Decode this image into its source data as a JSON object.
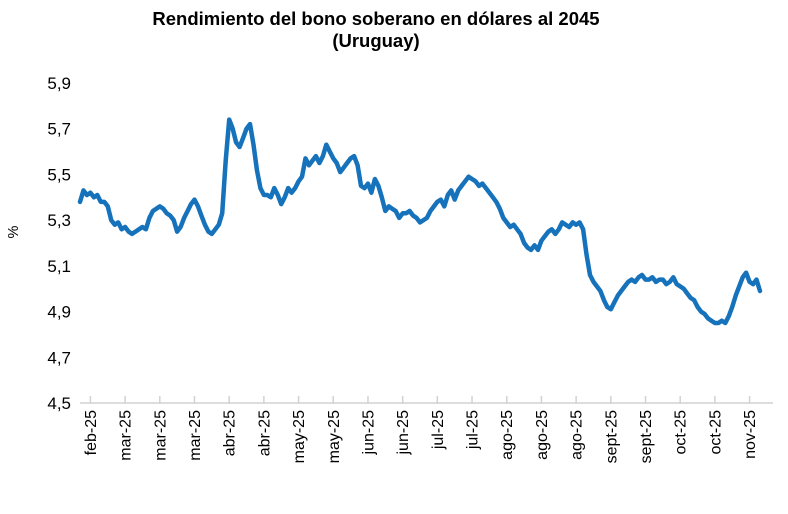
{
  "title": {
    "line1": "Rendimiento del bono soberano en dólares al 2045",
    "line2": "(Uruguay)"
  },
  "colors": {
    "line": "#1572BB",
    "axis": "#D2D2D2",
    "text": "#000000",
    "background": "#FFFFFF"
  },
  "chart_data": {
    "type": "line",
    "title": "Rendimiento del bono soberano en dólares al 2045 (Uruguay)",
    "xlabel": "",
    "ylabel": "%",
    "ylim": [
      4.5,
      5.9
    ],
    "grid": false,
    "legend": "none",
    "y_tick_values": [
      5.9,
      5.7,
      5.5,
      5.3,
      5.1,
      4.9,
      4.7,
      4.5
    ],
    "y_tick_labels": [
      "5,9",
      "5,7",
      "5,5",
      "5,3",
      "5,1",
      "4,9",
      "4,7",
      "4,5"
    ],
    "x_tick_labels": [
      "feb-25",
      "mar-25",
      "mar-25",
      "mar-25",
      "abr-25",
      "abr-25",
      "may-25",
      "may-25",
      "jun-25",
      "jun-25",
      "jul-25",
      "jul-25",
      "ago-25",
      "ago-25",
      "ago-25",
      "sept-25",
      "sept-25",
      "oct-25",
      "oct-25",
      "nov-25"
    ],
    "x_tick_indices": [
      3,
      13,
      23,
      33,
      43,
      53,
      63,
      73,
      83,
      93,
      103,
      113,
      123,
      133,
      143,
      153,
      163,
      173,
      183,
      193
    ],
    "series": [
      {
        "name": "Rendimiento del bono soberano en dólares al 2045 (Uruguay)",
        "unit": "%",
        "color": "#1572BB",
        "values": [
          5.38,
          5.43,
          5.41,
          5.42,
          5.4,
          5.41,
          5.38,
          5.38,
          5.36,
          5.3,
          5.28,
          5.29,
          5.26,
          5.27,
          5.25,
          5.24,
          5.25,
          5.26,
          5.27,
          5.26,
          5.31,
          5.34,
          5.35,
          5.36,
          5.35,
          5.33,
          5.32,
          5.3,
          5.25,
          5.27,
          5.31,
          5.34,
          5.37,
          5.39,
          5.36,
          5.32,
          5.28,
          5.25,
          5.24,
          5.26,
          5.28,
          5.33,
          5.56,
          5.74,
          5.7,
          5.64,
          5.62,
          5.66,
          5.7,
          5.72,
          5.63,
          5.52,
          5.44,
          5.41,
          5.41,
          5.4,
          5.44,
          5.41,
          5.37,
          5.4,
          5.44,
          5.42,
          5.44,
          5.47,
          5.49,
          5.57,
          5.54,
          5.56,
          5.58,
          5.55,
          5.58,
          5.63,
          5.6,
          5.57,
          5.55,
          5.51,
          5.53,
          5.55,
          5.57,
          5.58,
          5.54,
          5.45,
          5.44,
          5.46,
          5.42,
          5.48,
          5.45,
          5.4,
          5.34,
          5.36,
          5.35,
          5.34,
          5.31,
          5.33,
          5.33,
          5.34,
          5.32,
          5.31,
          5.29,
          5.3,
          5.31,
          5.34,
          5.36,
          5.38,
          5.39,
          5.36,
          5.41,
          5.43,
          5.39,
          5.43,
          5.45,
          5.47,
          5.49,
          5.48,
          5.47,
          5.45,
          5.46,
          5.44,
          5.42,
          5.4,
          5.38,
          5.35,
          5.31,
          5.29,
          5.27,
          5.28,
          5.26,
          5.24,
          5.2,
          5.18,
          5.17,
          5.19,
          5.17,
          5.21,
          5.23,
          5.25,
          5.26,
          5.24,
          5.26,
          5.29,
          5.28,
          5.27,
          5.29,
          5.28,
          5.29,
          5.26,
          5.15,
          5.06,
          5.03,
          5.01,
          4.99,
          4.95,
          4.92,
          4.91,
          4.94,
          4.97,
          4.99,
          5.01,
          5.03,
          5.04,
          5.03,
          5.05,
          5.06,
          5.04,
          5.04,
          5.05,
          5.03,
          5.04,
          5.04,
          5.02,
          5.03,
          5.05,
          5.02,
          5.01,
          5.0,
          4.98,
          4.96,
          4.95,
          4.92,
          4.9,
          4.89,
          4.87,
          4.86,
          4.85,
          4.85,
          4.86,
          4.85,
          4.88,
          4.92,
          4.97,
          5.01,
          5.05,
          5.07,
          5.03,
          5.02,
          5.04,
          4.99
        ]
      }
    ]
  }
}
